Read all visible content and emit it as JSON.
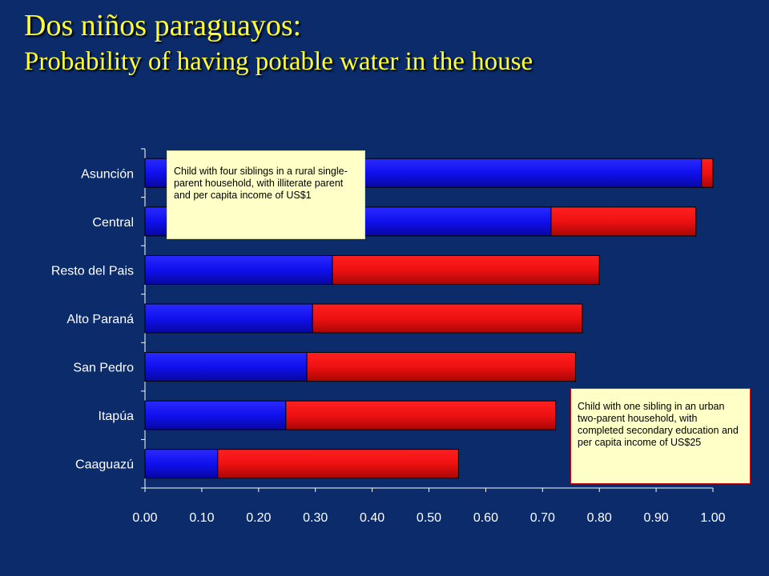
{
  "title": {
    "line1": "Dos niños paraguayos:",
    "line2": "Probability of having potable water in  the house"
  },
  "notes": {
    "rural": "Child with four siblings in a rural single-parent household, with illiterate parent and per capita income of US$1",
    "urban": "Child with one sibling in an urban two-parent household, with completed secondary education and per capita income of US$25"
  },
  "colors": {
    "background": "#0b2b6b",
    "title": "#ffff33",
    "series_rural": "#1010ee",
    "series_urban": "#ee1111",
    "axis": "#ffffff"
  },
  "chart_data": {
    "type": "bar",
    "orientation": "horizontal",
    "stacked": true,
    "categories": [
      "Asunción",
      "Central",
      "Resto del Pais",
      "Alto Paraná",
      "San Pedro",
      "Itapúa",
      "Caaguazú"
    ],
    "series": [
      {
        "values": [
          0.98,
          0.715,
          0.33,
          0.295,
          0.285,
          0.248,
          0.128
        ]
      },
      {
        "values": [
          0.02,
          0.255,
          0.47,
          0.475,
          0.473,
          0.475,
          0.424
        ]
      }
    ],
    "xlim": [
      0,
      1
    ],
    "xticks": [
      "0.00",
      "0.10",
      "0.20",
      "0.30",
      "0.40",
      "0.50",
      "0.60",
      "0.70",
      "0.80",
      "0.90",
      "1.00"
    ],
    "grid": false,
    "legend": "none"
  }
}
